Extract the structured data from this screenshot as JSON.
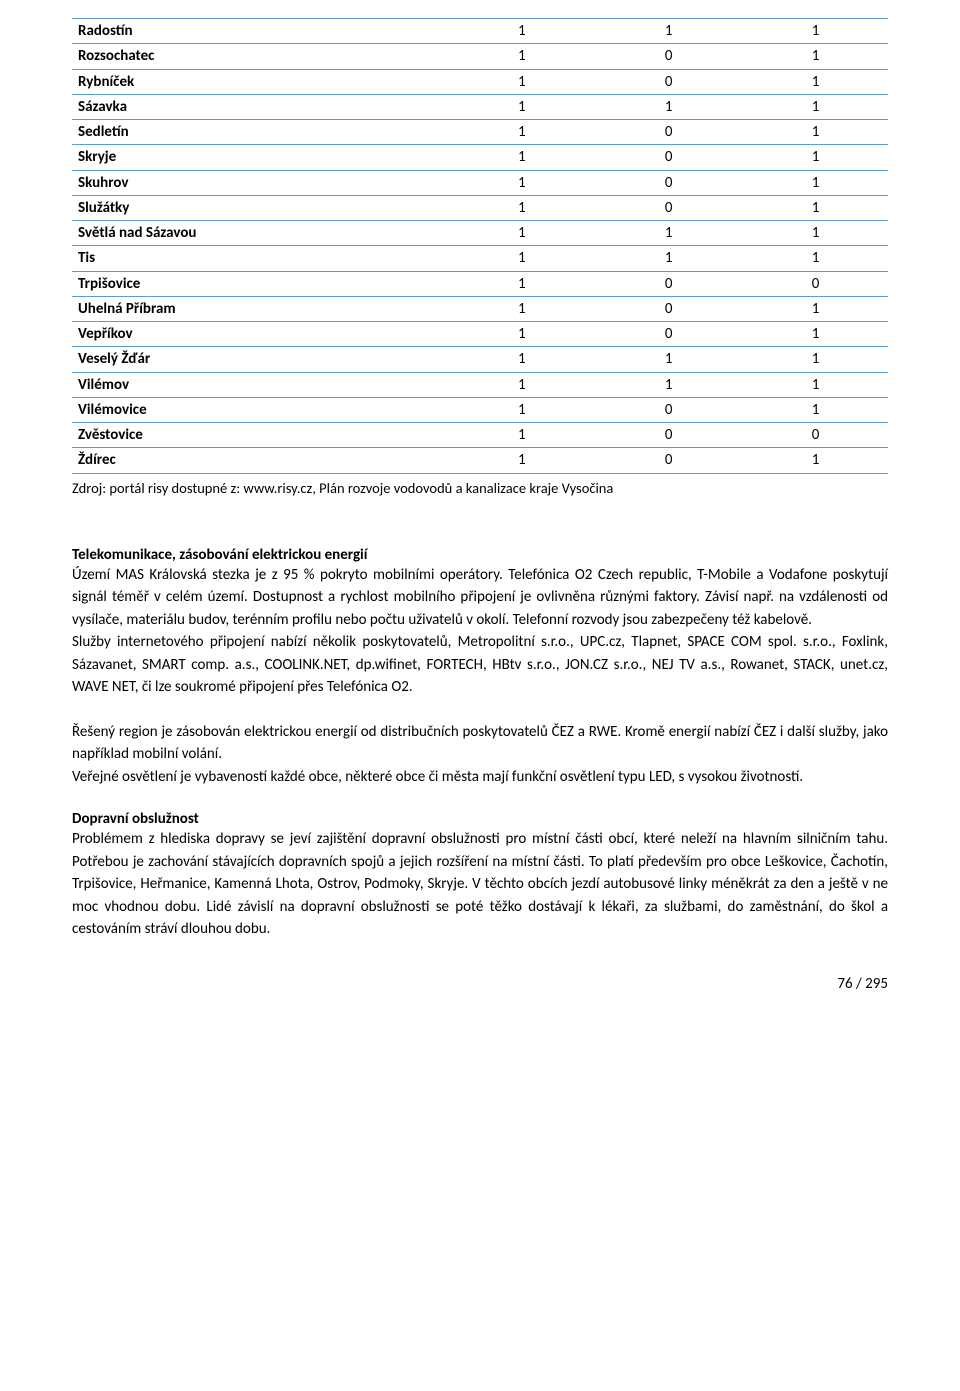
{
  "table": {
    "border_color": "#5b9bd5",
    "col_widths": [
      "46%",
      "18%",
      "18%",
      "18%"
    ],
    "rows": [
      {
        "name": "Radostín",
        "v": [
          "1",
          "1",
          "1"
        ]
      },
      {
        "name": "Rozsochatec",
        "v": [
          "1",
          "0",
          "1"
        ]
      },
      {
        "name": "Rybníček",
        "v": [
          "1",
          "0",
          "1"
        ]
      },
      {
        "name": "Sázavka",
        "v": [
          "1",
          "1",
          "1"
        ]
      },
      {
        "name": "Sedletín",
        "v": [
          "1",
          "0",
          "1"
        ]
      },
      {
        "name": "Skryje",
        "v": [
          "1",
          "0",
          "1"
        ]
      },
      {
        "name": "Skuhrov",
        "v": [
          "1",
          "0",
          "1"
        ]
      },
      {
        "name": "Služátky",
        "v": [
          "1",
          "0",
          "1"
        ]
      },
      {
        "name": "Světlá nad Sázavou",
        "v": [
          "1",
          "1",
          "1"
        ]
      },
      {
        "name": "Tis",
        "v": [
          "1",
          "1",
          "1"
        ]
      },
      {
        "name": "Trpišovice",
        "v": [
          "1",
          "0",
          "0"
        ]
      },
      {
        "name": "Uhelná Příbram",
        "v": [
          "1",
          "0",
          "1"
        ]
      },
      {
        "name": "Vepříkov",
        "v": [
          "1",
          "0",
          "1"
        ]
      },
      {
        "name": "Veselý Žďár",
        "v": [
          "1",
          "1",
          "1"
        ]
      },
      {
        "name": "Vilémov",
        "v": [
          "1",
          "1",
          "1"
        ]
      },
      {
        "name": "Vilémovice",
        "v": [
          "1",
          "0",
          "1"
        ]
      },
      {
        "name": "Zvěstovice",
        "v": [
          "1",
          "0",
          "0"
        ]
      },
      {
        "name": "Ždírec",
        "v": [
          "1",
          "0",
          "1"
        ]
      }
    ]
  },
  "source_line": "Zdroj: portál risy dostupné z: www.risy.cz, Plán rozvoje vodovodů a kanalizace kraje Vysočina",
  "heading_telecom": "Telekomunikace, zásobování elektrickou energií",
  "para_telecom": "Území MAS Královská stezka je z 95 % pokryto mobilními operátory. Telefónica O2 Czech republic, T-Mobile a Vodafone poskytují signál téměř v celém území. Dostupnost a rychlost mobilního připojení je ovlivněna různými faktory. Závisí např. na vzdálenosti od vysílače, materiálu budov, terénním profilu nebo počtu uživatelů v okolí. Telefonní rozvody jsou zabezpečeny též kabelově.\nSlužby internetového připojení nabízí několik poskytovatelů, Metropolitní s.r.o., UPC.cz, Tlapnet, SPACE COM spol. s.r.o., Foxlink, Sázavanet, SMART comp. a.s., COOLINK.NET, dp.wifinet, FORTECH, HBtv s.r.o., JON.CZ s.r.o., NEJ TV a.s., Rowanet, STACK, unet.cz, WAVE NET, či lze soukromé připojení přes Telefónica O2.",
  "para_energy": "Řešený region je zásobován elektrickou energií od distribučních poskytovatelů ČEZ a RWE. Kromě energií nabízí ČEZ i další služby, jako například mobilní volání.\nVeřejné osvětlení je vybaveností každé obce, některé obce či města mají funkční osvětlení typu LED, s vysokou životností.",
  "heading_transport": "Dopravní obslužnost",
  "para_transport": "Problémem z hlediska dopravy se jeví zajištění dopravní obslužnosti pro místní části obcí, které neleží na hlavním silničním tahu. Potřebou je zachování stávajících dopravních spojů a jejich rozšíření na místní části. To platí především pro obce Leškovice, Čachotín, Trpišovice, Heřmanice, Kamenná Lhota, Ostrov, Podmoky, Skryje. V těchto obcích jezdí autobusové linky méněkrát za den a ještě v ne moc vhodnou dobu. Lidé závislí na dopravní obslužnosti se poté těžko dostávají k lékaři, za službami, do zaměstnání, do škol a cestováním stráví dlouhou dobu.",
  "page_number": "76 / 295"
}
